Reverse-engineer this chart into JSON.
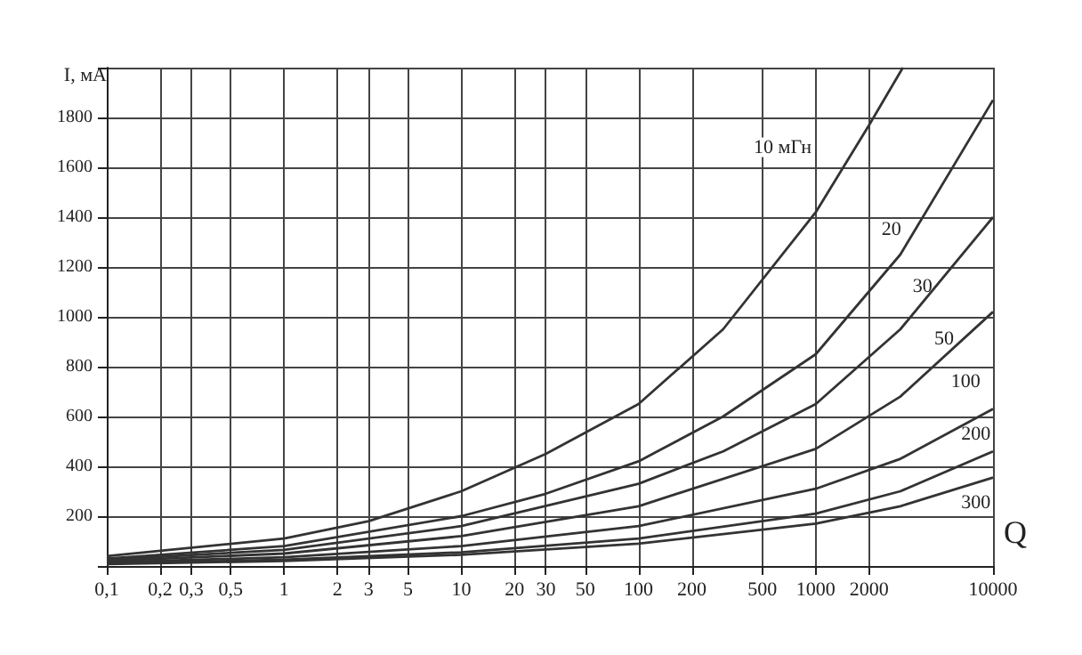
{
  "chart_data": {
    "type": "line",
    "xlabel": "Q",
    "ylabel": "I, мА",
    "log": "x",
    "grid": true,
    "marker": "none",
    "line_style": "solid",
    "xlim": [
      0.1,
      10000
    ],
    "ylim": [
      0,
      2000
    ],
    "xticks": [
      {
        "value": 0.1,
        "label": "0,1"
      },
      {
        "value": 0.2,
        "label": "0,2"
      },
      {
        "value": 0.3,
        "label": "0,3"
      },
      {
        "value": 0.5,
        "label": "0,5"
      },
      1,
      2,
      3,
      5,
      10,
      20,
      30,
      50,
      100,
      200,
      500,
      1000,
      2000,
      10000
    ],
    "yticks": [
      {
        "value": 0,
        "label": null
      },
      200,
      400,
      600,
      800,
      1000,
      1200,
      1400,
      1600,
      1800,
      {
        "value": 2000,
        "label": null
      }
    ],
    "series": [
      {
        "color": "#333333",
        "x": [
          0.1,
          1,
          3,
          10,
          30,
          100,
          300,
          1000,
          2000,
          3100
        ],
        "values": [
          40,
          110,
          180,
          300,
          450,
          650,
          950,
          1420,
          1770,
          2000
        ]
      },
      {
        "color": "#333333",
        "x": [
          0.1,
          1,
          10,
          30,
          100,
          300,
          1000,
          3000,
          10000
        ],
        "values": [
          30,
          80,
          200,
          290,
          420,
          600,
          850,
          1250,
          1870
        ]
      },
      {
        "color": "#333333",
        "x": [
          0.1,
          1,
          10,
          100,
          300,
          1000,
          3000,
          10000
        ],
        "values": [
          25,
          65,
          160,
          330,
          460,
          650,
          950,
          1400
        ]
      },
      {
        "color": "#333333",
        "x": [
          0.1,
          1,
          10,
          100,
          1000,
          3000,
          10000
        ],
        "values": [
          20,
          50,
          120,
          240,
          470,
          680,
          1020
        ]
      },
      {
        "color": "#333333",
        "x": [
          0.1,
          1,
          10,
          100,
          1000,
          3000,
          10000
        ],
        "values": [
          15,
          35,
          80,
          160,
          310,
          430,
          630
        ]
      },
      {
        "color": "#333333",
        "x": [
          0.1,
          1,
          10,
          100,
          1000,
          3000,
          10000
        ],
        "values": [
          10,
          25,
          55,
          110,
          210,
          300,
          460
        ]
      },
      {
        "color": "#333333",
        "x": [
          0.1,
          1,
          10,
          100,
          1000,
          3000,
          10000
        ],
        "values": [
          8,
          20,
          45,
          90,
          170,
          240,
          355
        ]
      }
    ],
    "annotations": [
      {
        "text": "10 мГн",
        "x": 650,
        "y": 1680
      },
      {
        "text": "20",
        "x": 2670,
        "y": 1350
      },
      {
        "text": "30",
        "x": 4000,
        "y": 1120
      },
      {
        "text": "50",
        "x": 5300,
        "y": 910
      },
      {
        "text": "100",
        "x": 7000,
        "y": 740
      },
      {
        "text": "200",
        "x": 8000,
        "y": 530
      },
      {
        "text": "300",
        "x": 8000,
        "y": 255
      }
    ]
  }
}
